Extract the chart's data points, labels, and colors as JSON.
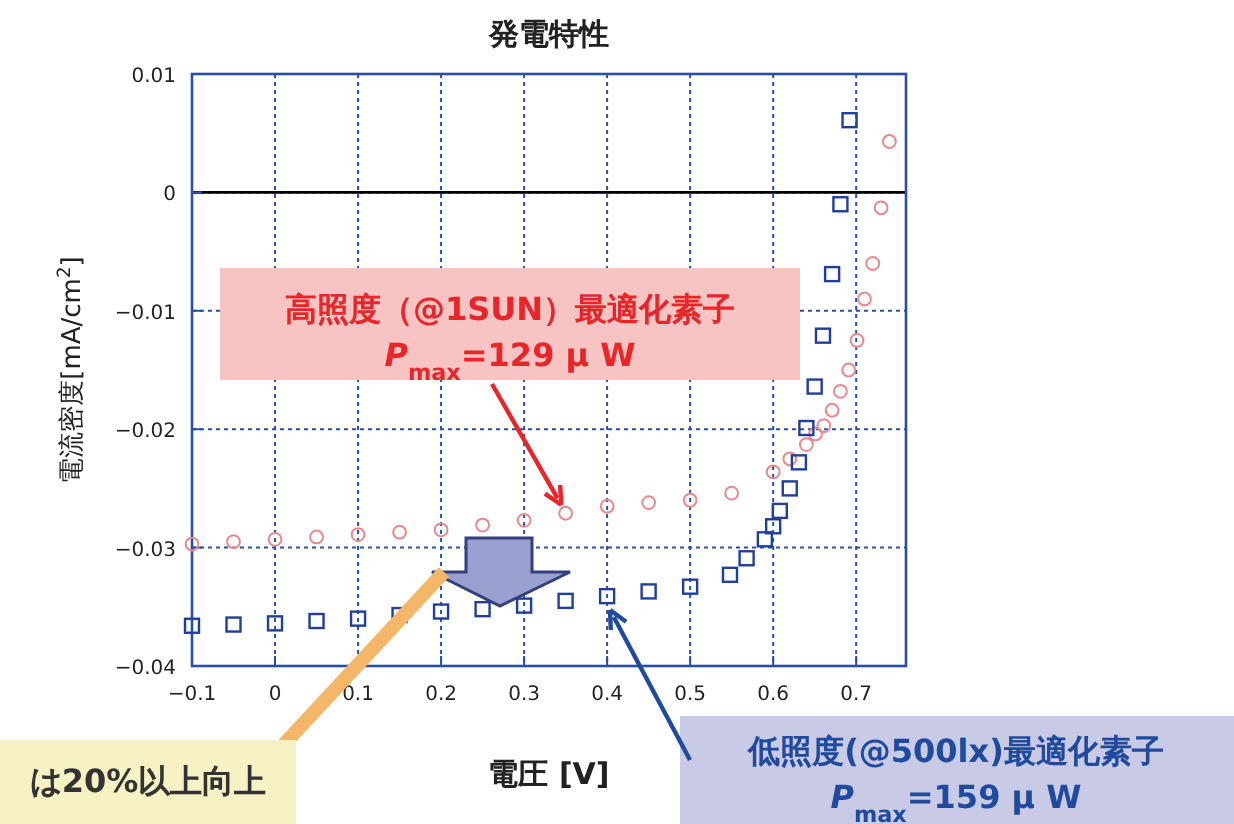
{
  "chart_data": {
    "type": "scatter",
    "title": "発電特性",
    "xlabel": "電圧 [V]",
    "ylabel": "電流密度[mA/cm$^{2}$]",
    "xlim": [
      -0.1,
      0.76
    ],
    "ylim": [
      -0.04,
      0.01
    ],
    "xticks": [
      -0.1,
      0,
      0.1,
      0.2,
      0.3,
      0.4,
      0.5,
      0.6,
      0.7
    ],
    "yticks": [
      -0.04,
      -0.03,
      -0.02,
      -0.01,
      0,
      0.01
    ],
    "grid": true,
    "ref_lines": [
      {
        "axis": "y",
        "value": 0,
        "color": "#000000",
        "line_style": "solid"
      }
    ],
    "series": [
      {
        "color": "#e8898c",
        "marker": "circle",
        "x": [
          -0.1,
          -0.05,
          0,
          0.05,
          0.1,
          0.15,
          0.2,
          0.25,
          0.3,
          0.35,
          0.4,
          0.45,
          0.5,
          0.55,
          0.6,
          0.62,
          0.64,
          0.651,
          0.661,
          0.671,
          0.681,
          0.691,
          0.701,
          0.71,
          0.72,
          0.73,
          0.74
        ],
        "values": [
          -0.0297,
          -0.0295,
          -0.0293,
          -0.0291,
          -0.0289,
          -0.0287,
          -0.0285,
          -0.0281,
          -0.0277,
          -0.0271,
          -0.0265,
          -0.0262,
          -0.026,
          -0.0254,
          -0.0236,
          -0.0225,
          -0.0213,
          -0.0204,
          -0.0197,
          -0.0184,
          -0.0168,
          -0.015,
          -0.0125,
          -0.009,
          -0.006,
          -0.0013,
          0.0043
        ]
      },
      {
        "color": "#1f3f9a",
        "marker": "square",
        "x": [
          -0.1,
          -0.05,
          0,
          0.05,
          0.1,
          0.15,
          0.2,
          0.25,
          0.3,
          0.35,
          0.4,
          0.45,
          0.5,
          0.548,
          0.568,
          0.59,
          0.6,
          0.608,
          0.62,
          0.631,
          0.64,
          0.65,
          0.66,
          0.671,
          0.681,
          0.692
        ],
        "values": [
          -0.0366,
          -0.0365,
          -0.0364,
          -0.0362,
          -0.036,
          -0.0357,
          -0.0354,
          -0.0352,
          -0.0349,
          -0.0345,
          -0.0341,
          -0.0337,
          -0.0333,
          -0.0323,
          -0.0309,
          -0.0293,
          -0.0282,
          -0.0269,
          -0.025,
          -0.0228,
          -0.0199,
          -0.0164,
          -0.0121,
          -0.0069,
          -0.001,
          0.0061
        ]
      }
    ],
    "annotations": [
      {
        "text": "高照度（@1SUN）最適化素子\n*P*$_{max}$=129 μ W",
        "x": 0.345,
        "y": -0.0264
      },
      "低照度(@500lx)最適化素子\n*P*$_{max}$=159 μ W",
      "は20%以上向上"
    ]
  }
}
